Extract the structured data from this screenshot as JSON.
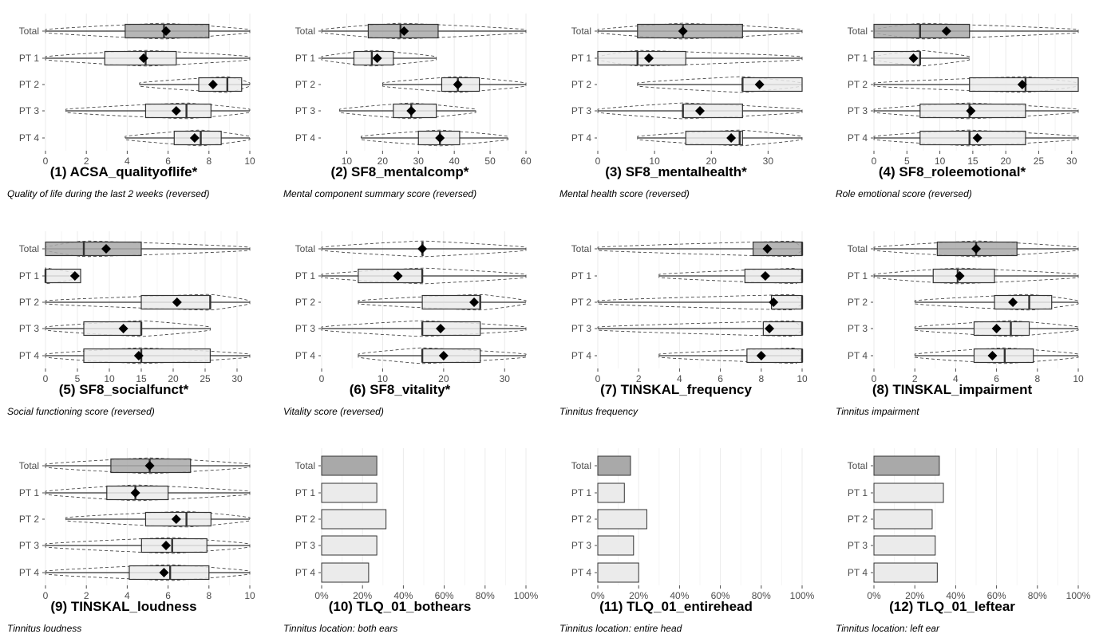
{
  "colors": {
    "total_fill": "#a9a9a9",
    "group_fill": "#ebebeb",
    "stroke": "#333333",
    "grid": "#ebebeb",
    "tick_label": "#4d4d4d",
    "title": "#000000"
  },
  "chart_data": [
    {
      "type": "box-violin",
      "title": "(1) ACSA_qualityoflife*",
      "subtitle": "Quality of life during the last 2 weeks (reversed)",
      "categories": [
        "Total",
        "PT 1",
        "PT 2",
        "PT 3",
        "PT 4"
      ],
      "xlim": [
        0,
        10
      ],
      "ticks": [
        0,
        2,
        4,
        6,
        8,
        10
      ],
      "tick_labels": [
        "0",
        "2",
        "4",
        "6",
        "8",
        "10"
      ],
      "boxes": [
        {
          "q1": 3.9,
          "median": 5.8,
          "q3": 8.0,
          "mean": 5.9,
          "wlo": 0,
          "whi": 10
        },
        {
          "q1": 2.9,
          "median": 4.9,
          "q3": 6.4,
          "mean": 4.8,
          "wlo": 0,
          "whi": 10
        },
        {
          "q1": 7.5,
          "median": 8.9,
          "q3": 9.6,
          "mean": 8.2,
          "wlo": 4.6,
          "whi": 10
        },
        {
          "q1": 4.9,
          "median": 6.9,
          "q3": 8.1,
          "mean": 6.4,
          "wlo": 1.0,
          "whi": 10
        },
        {
          "q1": 6.3,
          "median": 7.6,
          "q3": 8.6,
          "mean": 7.3,
          "wlo": 3.9,
          "whi": 10
        }
      ]
    },
    {
      "type": "box-violin",
      "title": "(2) SF8_mentalcomp*",
      "subtitle": "Mental component summary score (reversed)",
      "categories": [
        "Total",
        "PT 1",
        "PT 2",
        "PT 3",
        "PT 4"
      ],
      "xlim": [
        3,
        60
      ],
      "ticks": [
        10,
        20,
        30,
        40,
        50,
        60
      ],
      "tick_labels": [
        "10",
        "20",
        "30",
        "40",
        "50",
        "60"
      ],
      "boxes": [
        {
          "q1": 16,
          "median": 25,
          "q3": 35.5,
          "mean": 26,
          "wlo": 3,
          "whi": 60
        },
        {
          "q1": 12,
          "median": 17,
          "q3": 23,
          "mean": 18.5,
          "wlo": 3,
          "whi": 35
        },
        {
          "q1": 36.5,
          "median": 41,
          "q3": 47,
          "mean": 41,
          "wlo": 20,
          "whi": 60
        },
        {
          "q1": 23,
          "median": 28,
          "q3": 35,
          "mean": 28,
          "wlo": 8,
          "whi": 46
        },
        {
          "q1": 30,
          "median": 36,
          "q3": 41.5,
          "mean": 36,
          "wlo": 14,
          "whi": 55
        }
      ]
    },
    {
      "type": "box-violin",
      "title": "(3) SF8_mentalhealth*",
      "subtitle": "Mental health score (reversed)",
      "categories": [
        "Total",
        "PT 1",
        "PT 2",
        "PT 3",
        "PT 4"
      ],
      "xlim": [
        0,
        36
      ],
      "ticks": [
        0,
        10,
        20,
        30
      ],
      "tick_labels": [
        "0",
        "10",
        "20",
        "30"
      ],
      "boxes": [
        {
          "q1": 7,
          "median": 15,
          "q3": 25.5,
          "mean": 15,
          "wlo": 0,
          "whi": 36
        },
        {
          "q1": 0,
          "median": 7,
          "q3": 15.5,
          "mean": 9,
          "wlo": 0,
          "whi": 36
        },
        {
          "q1": 25.5,
          "median": 25.5,
          "q3": 36,
          "mean": 28.5,
          "wlo": 7,
          "whi": 36
        },
        {
          "q1": 15,
          "median": 15,
          "q3": 25.5,
          "mean": 18,
          "wlo": 0,
          "whi": 36
        },
        {
          "q1": 15.5,
          "median": 25,
          "q3": 25.5,
          "mean": 23.5,
          "wlo": 7,
          "whi": 36
        }
      ]
    },
    {
      "type": "box-violin",
      "title": "(4) SF8_roleemotional*",
      "subtitle": "Role emotional score (reversed)",
      "categories": [
        "Total",
        "PT 1",
        "PT 2",
        "PT 3",
        "PT 4"
      ],
      "xlim": [
        0,
        31
      ],
      "ticks": [
        0,
        5,
        10,
        15,
        20,
        25,
        30
      ],
      "tick_labels": [
        "0",
        "5",
        "10",
        "15",
        "20",
        "25",
        "30"
      ],
      "boxes": [
        {
          "q1": 0,
          "median": 7,
          "q3": 14.5,
          "mean": 11,
          "wlo": 0,
          "whi": 31
        },
        {
          "q1": 0,
          "median": 7,
          "q3": 7,
          "mean": 6,
          "wlo": 0,
          "whi": 14.5
        },
        {
          "q1": 14.5,
          "median": 23,
          "q3": 31,
          "mean": 22.5,
          "wlo": 0,
          "whi": 31
        },
        {
          "q1": 7,
          "median": 14.5,
          "q3": 23,
          "mean": 14.7,
          "wlo": 0,
          "whi": 31
        },
        {
          "q1": 7,
          "median": 14.5,
          "q3": 23,
          "mean": 15.7,
          "wlo": 0,
          "whi": 31
        }
      ]
    },
    {
      "type": "box-violin",
      "title": "(5) SF8_socialfunct*",
      "subtitle": "Social functioning score (reversed)",
      "categories": [
        "Total",
        "PT 1",
        "PT 2",
        "PT 3",
        "PT 4"
      ],
      "xlim": [
        0,
        32
      ],
      "ticks": [
        0,
        5,
        10,
        15,
        20,
        25,
        30
      ],
      "tick_labels": [
        "0",
        "5",
        "10",
        "15",
        "20",
        "25",
        "30"
      ],
      "boxes": [
        {
          "q1": 0,
          "median": 6,
          "q3": 15,
          "mean": 9.5,
          "wlo": 0,
          "whi": 32
        },
        {
          "q1": 0,
          "median": 0,
          "q3": 5.5,
          "mean": 4.6,
          "wlo": 0,
          "whi": 5.5
        },
        {
          "q1": 15,
          "median": 25.8,
          "q3": 25.8,
          "mean": 20.6,
          "wlo": 0,
          "whi": 32
        },
        {
          "q1": 6,
          "median": 15,
          "q3": 15,
          "mean": 12.2,
          "wlo": 0,
          "whi": 25.8
        },
        {
          "q1": 6,
          "median": 15,
          "q3": 25.8,
          "mean": 14.6,
          "wlo": 0,
          "whi": 32
        }
      ]
    },
    {
      "type": "box-violin",
      "title": "(6) SF8_vitality*",
      "subtitle": "Vitality score (reversed)",
      "categories": [
        "Total",
        "PT 1",
        "PT 2",
        "PT 3",
        "PT 4"
      ],
      "xlim": [
        0,
        33.5
      ],
      "ticks": [
        0,
        10,
        20,
        30
      ],
      "tick_labels": [
        "0",
        "10",
        "20",
        "30"
      ],
      "boxes": [
        {
          "q1": 16.5,
          "median": 16.5,
          "q3": 16.5,
          "mean": 16.5,
          "wlo": 0,
          "whi": 33.5
        },
        {
          "q1": 6,
          "median": 16.5,
          "q3": 16.5,
          "mean": 12.5,
          "wlo": 0,
          "whi": 33.5
        },
        {
          "q1": 16.5,
          "median": 26,
          "q3": 26,
          "mean": 25,
          "wlo": 6,
          "whi": 33.5
        },
        {
          "q1": 16.5,
          "median": 16.5,
          "q3": 26,
          "mean": 19.5,
          "wlo": 0,
          "whi": 33.5
        },
        {
          "q1": 16.5,
          "median": 16.5,
          "q3": 26,
          "mean": 20,
          "wlo": 6,
          "whi": 33.5
        }
      ]
    },
    {
      "type": "box-violin",
      "title": "(7) TINSKAL_frequency",
      "subtitle": "Tinnitus frequency",
      "categories": [
        "Total",
        "PT 1",
        "PT 2",
        "PT 3",
        "PT 4"
      ],
      "xlim": [
        0,
        10
      ],
      "ticks": [
        0,
        2,
        4,
        6,
        8,
        10
      ],
      "tick_labels": [
        "0",
        "2",
        "4",
        "6",
        "8",
        "10"
      ],
      "boxes": [
        {
          "q1": 7.6,
          "median": 10,
          "q3": 10,
          "mean": 8.3,
          "wlo": 0,
          "whi": 10
        },
        {
          "q1": 7.2,
          "median": 10,
          "q3": 10,
          "mean": 8.2,
          "wlo": 3,
          "whi": 10
        },
        {
          "q1": 8.5,
          "median": 10,
          "q3": 10,
          "mean": 8.6,
          "wlo": 0,
          "whi": 10
        },
        {
          "q1": 8.1,
          "median": 10,
          "q3": 10,
          "mean": 8.4,
          "wlo": 0,
          "whi": 10
        },
        {
          "q1": 7.3,
          "median": 10,
          "q3": 10,
          "mean": 8.0,
          "wlo": 3,
          "whi": 10
        }
      ]
    },
    {
      "type": "box-violin",
      "title": "(8) TINSKAL_impairment",
      "subtitle": "Tinnitus impairment",
      "categories": [
        "Total",
        "PT 1",
        "PT 2",
        "PT 3",
        "PT 4"
      ],
      "xlim": [
        0,
        10
      ],
      "ticks": [
        0,
        2,
        4,
        6,
        8,
        10
      ],
      "tick_labels": [
        "0",
        "2",
        "4",
        "6",
        "8",
        "10"
      ],
      "boxes": [
        {
          "q1": 3.1,
          "median": 5.0,
          "q3": 7.0,
          "mean": 5.0,
          "wlo": 0,
          "whi": 10
        },
        {
          "q1": 2.9,
          "median": 4.1,
          "q3": 5.9,
          "mean": 4.2,
          "wlo": 0,
          "whi": 10
        },
        {
          "q1": 5.9,
          "median": 7.6,
          "q3": 8.7,
          "mean": 6.8,
          "wlo": 2,
          "whi": 10
        },
        {
          "q1": 4.9,
          "median": 6.7,
          "q3": 7.6,
          "mean": 6.0,
          "wlo": 2,
          "whi": 10
        },
        {
          "q1": 4.9,
          "median": 6.4,
          "q3": 7.8,
          "mean": 5.8,
          "wlo": 2,
          "whi": 10
        }
      ]
    },
    {
      "type": "box-violin",
      "title": "(9) TINSKAL_loudness",
      "subtitle": "Tinnitus loudness",
      "categories": [
        "Total",
        "PT 1",
        "PT 2",
        "PT 3",
        "PT 4"
      ],
      "xlim": [
        0,
        10
      ],
      "ticks": [
        0,
        2,
        4,
        6,
        8,
        10
      ],
      "tick_labels": [
        "0",
        "2",
        "4",
        "6",
        "8",
        "10"
      ],
      "boxes": [
        {
          "q1": 3.2,
          "median": 5.1,
          "q3": 7.1,
          "mean": 5.1,
          "wlo": 0,
          "whi": 10
        },
        {
          "q1": 3.0,
          "median": 4.4,
          "q3": 6.0,
          "mean": 4.4,
          "wlo": 0,
          "whi": 10
        },
        {
          "q1": 4.9,
          "median": 6.9,
          "q3": 8.1,
          "mean": 6.4,
          "wlo": 1,
          "whi": 10
        },
        {
          "q1": 4.7,
          "median": 6.2,
          "q3": 7.9,
          "mean": 5.9,
          "wlo": 0,
          "whi": 10
        },
        {
          "q1": 4.1,
          "median": 6.1,
          "q3": 8.0,
          "mean": 5.8,
          "wlo": 0,
          "whi": 10
        }
      ]
    },
    {
      "type": "bar",
      "title": "(10) TLQ_01_bothears",
      "subtitle": "Tinnitus location: both ears",
      "categories": [
        "Total",
        "PT 1",
        "PT 2",
        "PT 3",
        "PT 4"
      ],
      "values": [
        27,
        27,
        31.5,
        27,
        23
      ],
      "xlim": [
        0,
        100
      ],
      "ticks": [
        0,
        20,
        40,
        60,
        80,
        100
      ],
      "tick_labels": [
        "0%",
        "20%",
        "40%",
        "60%",
        "80%",
        "100%"
      ]
    },
    {
      "type": "bar",
      "title": "(11) TLQ_01_entirehead",
      "subtitle": "Tinnitus location: entire head",
      "categories": [
        "Total",
        "PT 1",
        "PT 2",
        "PT 3",
        "PT 4"
      ],
      "values": [
        16,
        13,
        24,
        17.5,
        20
      ],
      "xlim": [
        0,
        100
      ],
      "ticks": [
        0,
        20,
        40,
        60,
        80,
        100
      ],
      "tick_labels": [
        "0%",
        "20%",
        "40%",
        "60%",
        "80%",
        "100%"
      ]
    },
    {
      "type": "bar",
      "title": "(12) TLQ_01_leftear",
      "subtitle": "Tinnitus location: left ear",
      "categories": [
        "Total",
        "PT 1",
        "PT 2",
        "PT 3",
        "PT 4"
      ],
      "values": [
        32,
        34,
        28.5,
        30,
        31
      ],
      "xlim": [
        0,
        100
      ],
      "ticks": [
        0,
        20,
        40,
        60,
        80,
        100
      ],
      "tick_labels": [
        "0%",
        "20%",
        "40%",
        "60%",
        "80%",
        "100%"
      ]
    }
  ]
}
